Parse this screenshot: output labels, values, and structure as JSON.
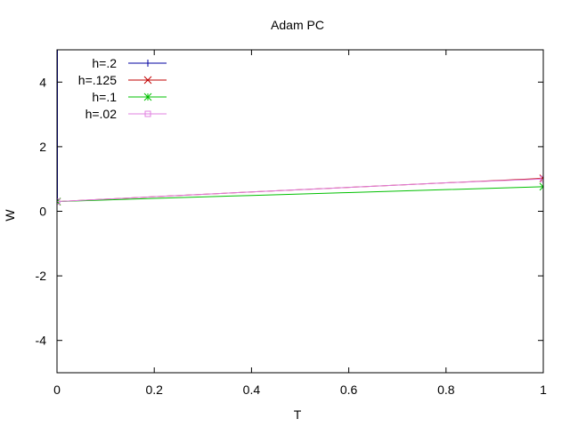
{
  "chart_data": {
    "type": "line",
    "title": "Adam PC",
    "xlabel": "T",
    "ylabel": "W",
    "xlim": [
      0,
      1
    ],
    "ylim": [
      -5,
      5
    ],
    "xticks": [
      0,
      0.2,
      0.4,
      0.6,
      0.8,
      1
    ],
    "xtick_labels": [
      "0",
      "0.2",
      "0.4",
      "0.6",
      "0.8",
      "1"
    ],
    "yticks": [
      -4,
      -2,
      0,
      2,
      4
    ],
    "ytick_labels": [
      "-4",
      "-2",
      "0",
      "2",
      "4"
    ],
    "grid": false,
    "legend_position": "top-left",
    "series": [
      {
        "name": "h=.2",
        "color": "#0000a0",
        "marker": "plus",
        "x": [
          0,
          0.0,
          0.0
        ],
        "y": [
          0.3,
          2.7,
          5.0
        ]
      },
      {
        "name": "h=.125",
        "color": "#c00000",
        "marker": "cross",
        "x": [
          0,
          0.2,
          0.4,
          0.6,
          0.8,
          1.0
        ],
        "y": [
          0.3,
          0.45,
          0.6,
          0.74,
          0.88,
          1.02
        ]
      },
      {
        "name": "h=.1",
        "color": "#00c000",
        "marker": "asterisk",
        "x": [
          0,
          0.2,
          0.4,
          0.6,
          0.8,
          1.0
        ],
        "y": [
          0.3,
          0.4,
          0.49,
          0.58,
          0.67,
          0.76
        ]
      },
      {
        "name": "h=.02",
        "color": "#e080e0",
        "marker": "square",
        "x": [
          0,
          0.2,
          0.4,
          0.6,
          0.8,
          1.0
        ],
        "y": [
          0.3,
          0.45,
          0.6,
          0.74,
          0.88,
          1.0
        ]
      }
    ]
  }
}
